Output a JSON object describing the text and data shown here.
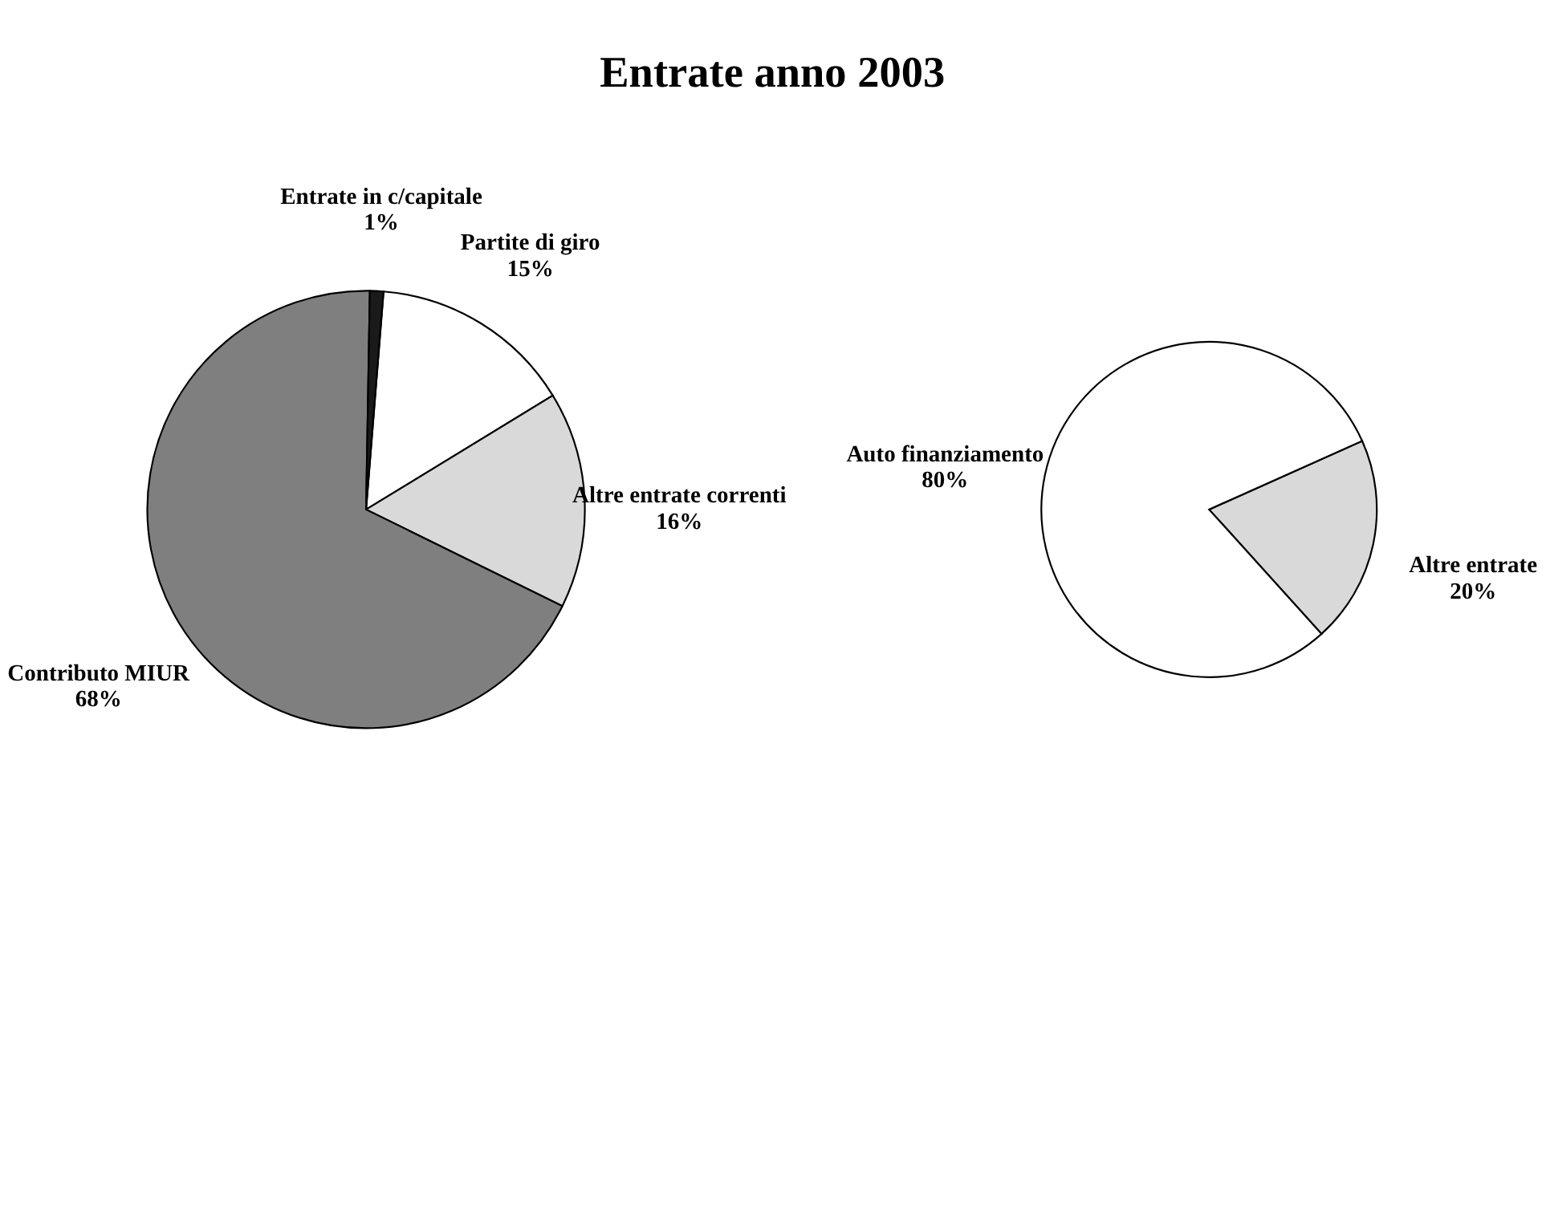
{
  "chart_data": [
    {
      "type": "pie",
      "title": "Entrate anno 2003",
      "categories": [
        "Partite di giro",
        "Altre entrate correnti",
        "Contributo MIUR",
        "Entrate in c/capitale"
      ],
      "values": [
        15,
        16,
        68,
        1
      ],
      "colors": [
        "#ffffff",
        "#d9d9d9",
        "#7f7f7f",
        "#1a1a1a"
      ],
      "value_labels": [
        "15%",
        "16%",
        "68%",
        "1%"
      ],
      "legend": false
    },
    {
      "type": "pie",
      "categories": [
        "Altre entrate",
        "Auto finanziamento"
      ],
      "values": [
        20,
        80
      ],
      "colors": [
        "#d9d9d9",
        "#ffffff"
      ],
      "value_labels": [
        "20%",
        "80%"
      ],
      "legend": false
    }
  ]
}
